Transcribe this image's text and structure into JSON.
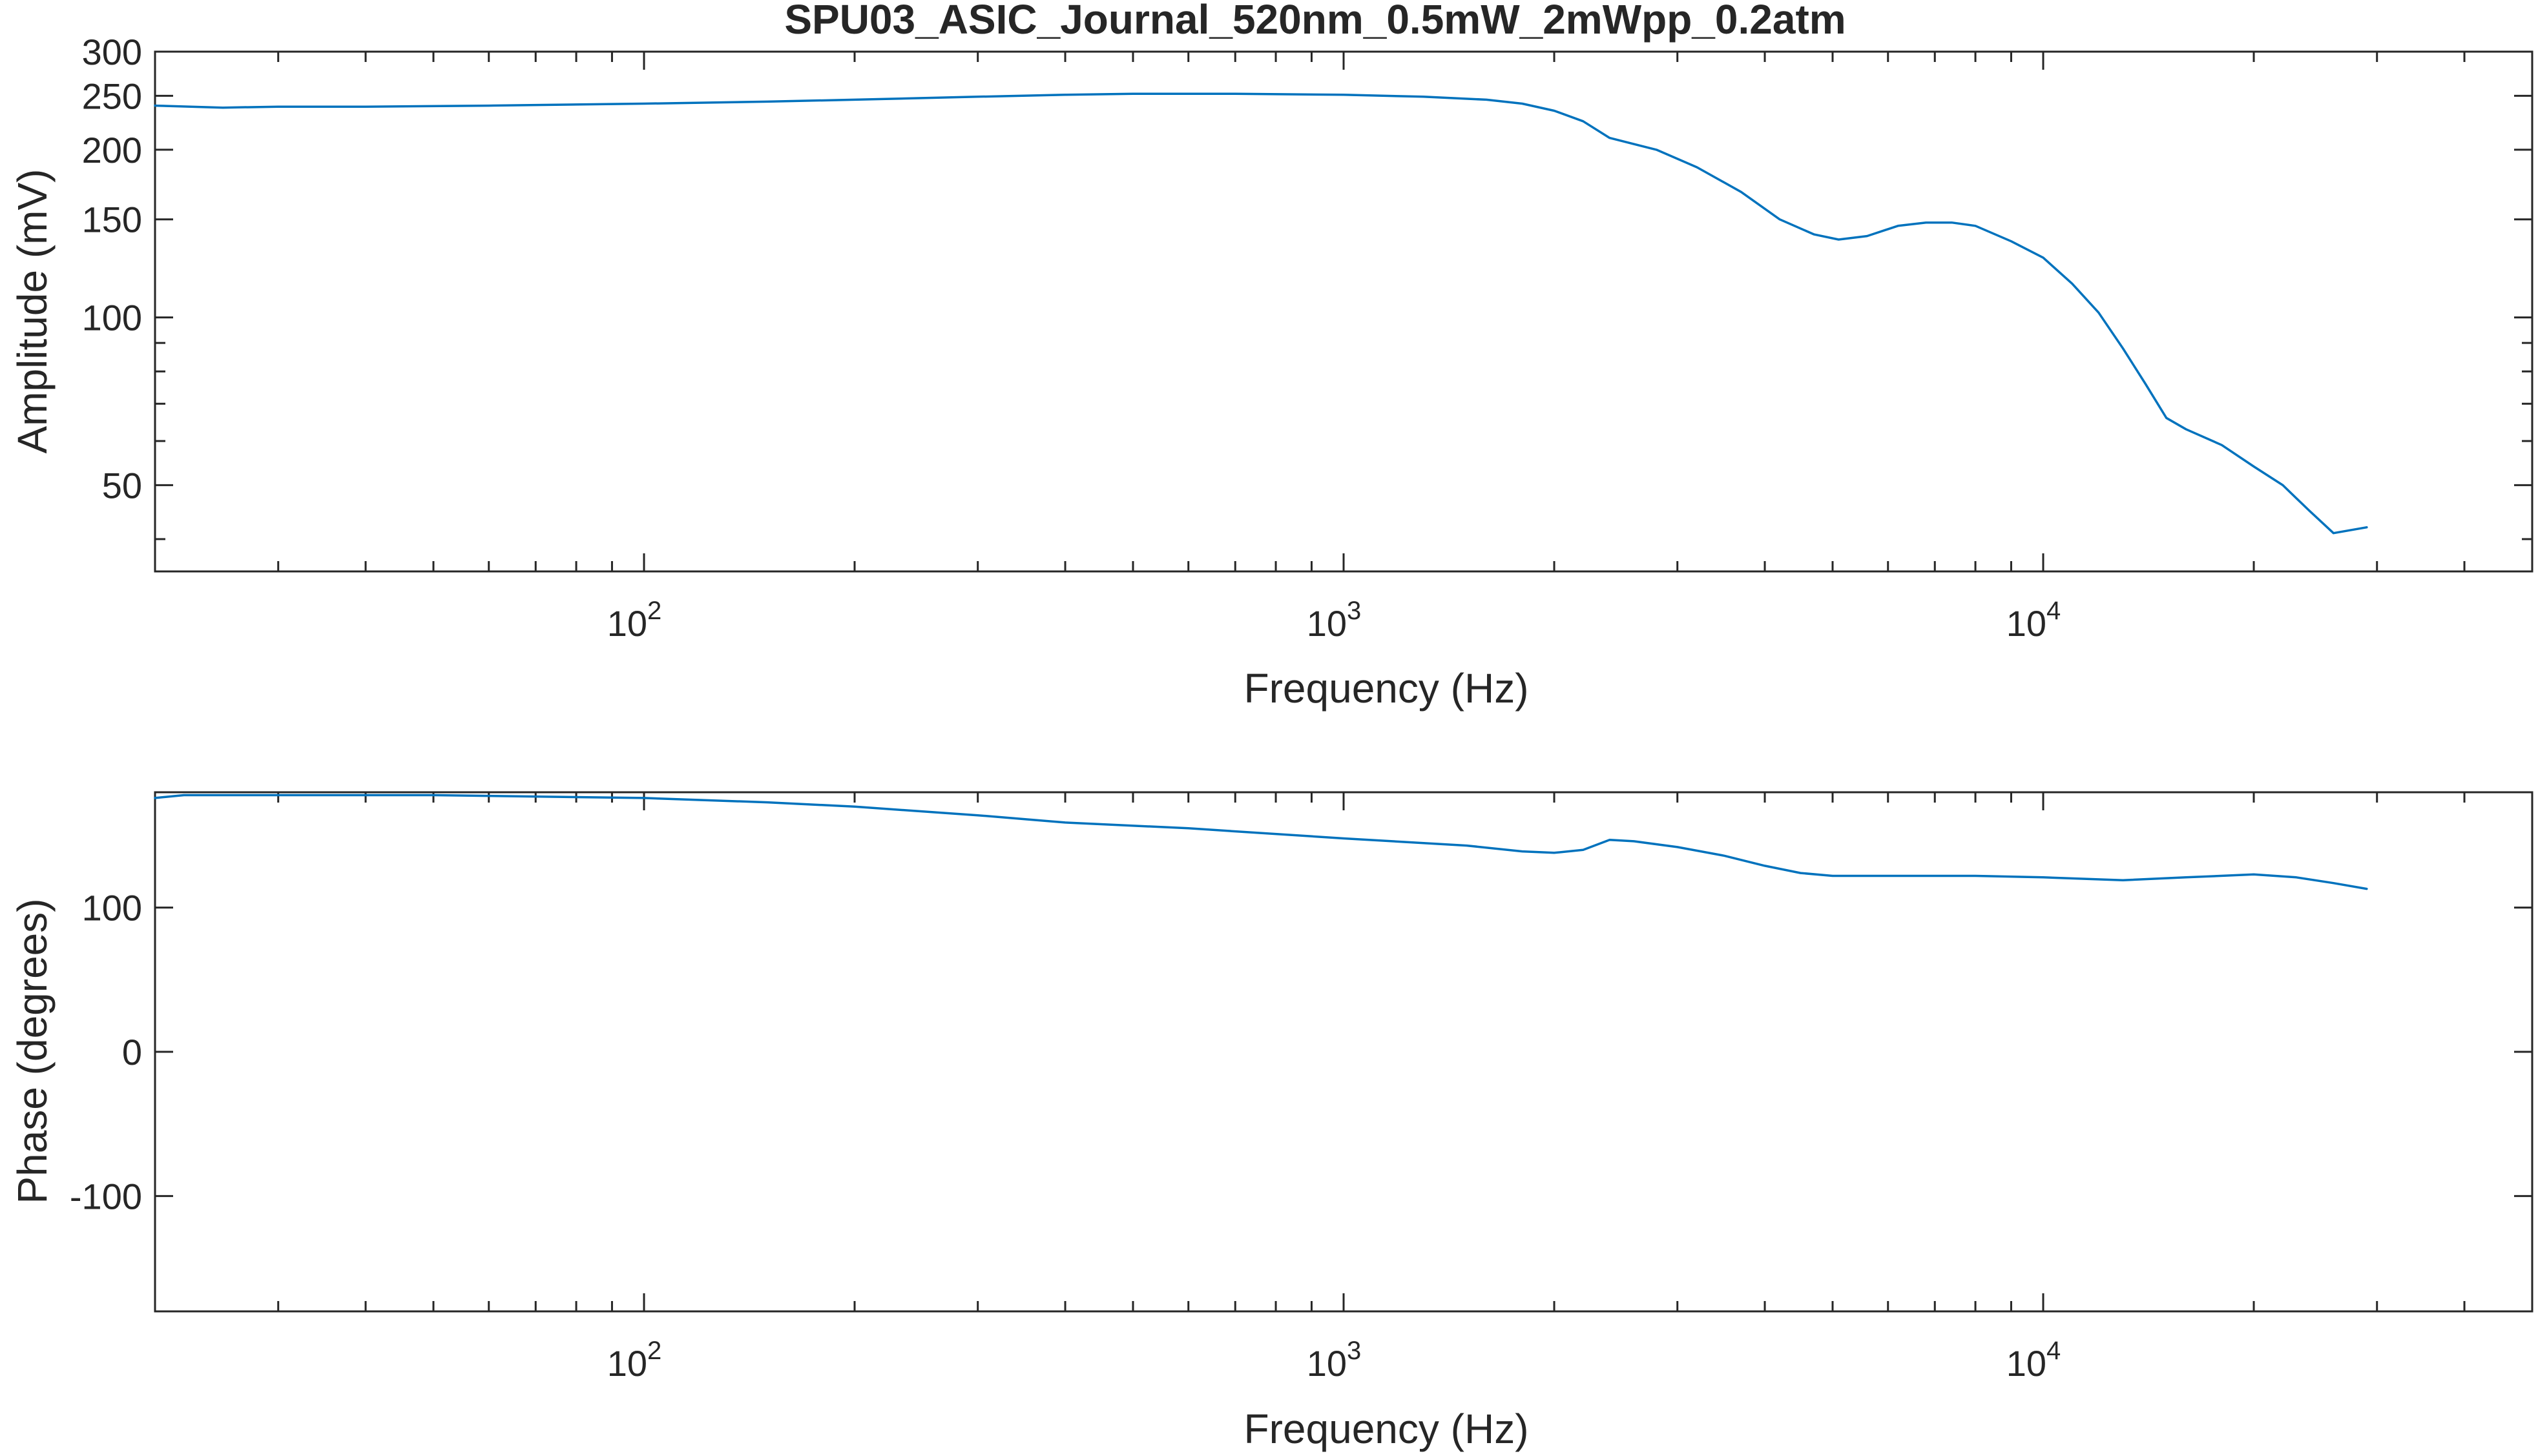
{
  "title": "SPU03_ASIC_Journal_520nm_0.5mW_2mWpp_0.2atm",
  "colors": {
    "series": "#0072BD",
    "axes": "#262626",
    "background": "#ffffff"
  },
  "chart_data": [
    {
      "type": "line",
      "title": "SPU03_ASIC_Journal_520nm_0.5mW_2mWpp_0.2atm",
      "xlabel": "Frequency (Hz)",
      "ylabel": "Amplitude (mV)",
      "xscale": "log",
      "yscale": "log",
      "xlim": [
        20,
        50000
      ],
      "ylim": [
        35,
        300
      ],
      "grid": false,
      "legend": "none",
      "xtick_labels": [
        {
          "value": 100,
          "base": "10",
          "exp": "2"
        },
        {
          "value": 1000,
          "base": "10",
          "exp": "3"
        },
        {
          "value": 10000,
          "base": "10",
          "exp": "4"
        }
      ],
      "yticks": [
        50,
        100,
        150,
        200,
        250,
        300
      ],
      "ytick_labels": [
        "50",
        "100",
        "150",
        "200",
        "250",
        "300"
      ],
      "series": [
        {
          "x": [
            20,
            25,
            30,
            40,
            60,
            100,
            150,
            200,
            300,
            400,
            500,
            700,
            1000,
            1300,
            1600,
            1800,
            2000,
            2200,
            2400,
            2800,
            3200,
            3700,
            4200,
            4700,
            5100,
            5600,
            6200,
            6800,
            7400,
            8000,
            9000,
            10000,
            11000,
            12000,
            13000,
            14000,
            15000,
            16000,
            18000,
            20000,
            22000,
            24000,
            26000,
            29000
          ],
          "y": [
            240,
            238,
            239,
            239,
            240,
            242,
            244,
            246,
            249,
            251,
            252,
            252,
            251,
            249,
            246,
            242,
            235,
            225,
            210,
            200,
            186,
            168,
            150,
            141,
            138,
            140,
            146,
            148,
            148,
            146,
            137,
            128,
            115,
            102,
            88,
            76,
            66,
            63,
            59,
            54,
            50,
            45,
            41,
            42
          ]
        }
      ]
    },
    {
      "type": "line",
      "xlabel": "Frequency (Hz)",
      "ylabel": "Phase (degrees)",
      "xscale": "log",
      "xlim": [
        20,
        50000
      ],
      "ylim": [
        -180,
        180
      ],
      "grid": false,
      "legend": "none",
      "xtick_labels": [
        {
          "value": 100,
          "base": "10",
          "exp": "2"
        },
        {
          "value": 1000,
          "base": "10",
          "exp": "3"
        },
        {
          "value": 10000,
          "base": "10",
          "exp": "4"
        }
      ],
      "yticks": [
        -100,
        0,
        100
      ],
      "ytick_labels": [
        "-100",
        "0",
        "100"
      ],
      "series": [
        {
          "x": [
            20,
            22,
            30,
            50,
            100,
            150,
            200,
            300,
            400,
            600,
            1000,
            1500,
            1800,
            2000,
            2200,
            2400,
            2600,
            3000,
            3500,
            4000,
            4500,
            5000,
            6000,
            8000,
            10000,
            13000,
            16000,
            20000,
            23000,
            26000,
            29000
          ],
          "y": [
            176,
            178,
            178,
            178,
            176,
            173,
            170,
            164,
            159,
            155,
            148,
            143,
            139,
            138,
            140,
            147,
            146,
            142,
            136,
            129,
            124,
            122,
            122,
            122,
            121,
            119,
            121,
            123,
            121,
            117,
            113
          ]
        }
      ]
    }
  ]
}
